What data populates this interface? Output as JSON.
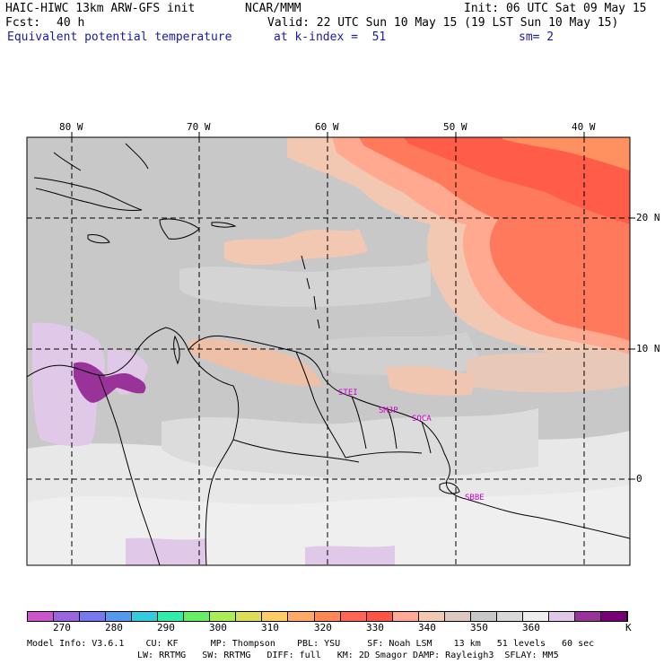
{
  "header": {
    "model_title": "HAIC-HIWC 13km ARW-GFS init",
    "org": "NCAR/MMM",
    "init": "Init: 06 UTC Sat 09 May 15",
    "fcst_label": "Fcst:",
    "fcst_value": "40 h",
    "valid": "Valid: 22 UTC Sun 10 May 15 (19 LST Sun 10 May 15)",
    "field": "Equivalent potential temperature",
    "level": "at k-index =  51",
    "smooth": "sm= 2"
  },
  "axes": {
    "lon_labels": [
      "80 W",
      "70 W",
      "60 W",
      "50 W",
      "40 W"
    ],
    "lat_labels": [
      "20 N",
      "10 N",
      "0"
    ]
  },
  "stations": [
    "STEI",
    "SMJP",
    "SOCA",
    "SBBE"
  ],
  "colorbar": {
    "unit": "K",
    "tick_labels": [
      "270",
      "280",
      "290",
      "300",
      "310",
      "320",
      "330",
      "340",
      "350",
      "360"
    ],
    "colors": [
      "#cc55cc",
      "#9966dd",
      "#7777ee",
      "#5599ee",
      "#33ccdd",
      "#33eeaa",
      "#66ee66",
      "#aaee55",
      "#dddd55",
      "#ffcc66",
      "#ffaa66",
      "#ff8855",
      "#ff6655",
      "#ff5544",
      "#ffaa99",
      "#f2c8b3",
      "#dcc8c0",
      "#c8c8c8",
      "#d8d8d8",
      "#eeeeee",
      "#e0c8e8",
      "#993399",
      "#770077"
    ]
  },
  "model_info": {
    "line1": "Model Info: V3.6.1    CU: KF      MP: Thompson    PBL: YSU     SF: Noah LSM    13 km   51 levels   60 sec",
    "line2": "LW: RRTMG   SW: RRTMG   DIFF: full   KM: 2D Smagor DAMP: Rayleigh3  SFLAY: MM5"
  }
}
